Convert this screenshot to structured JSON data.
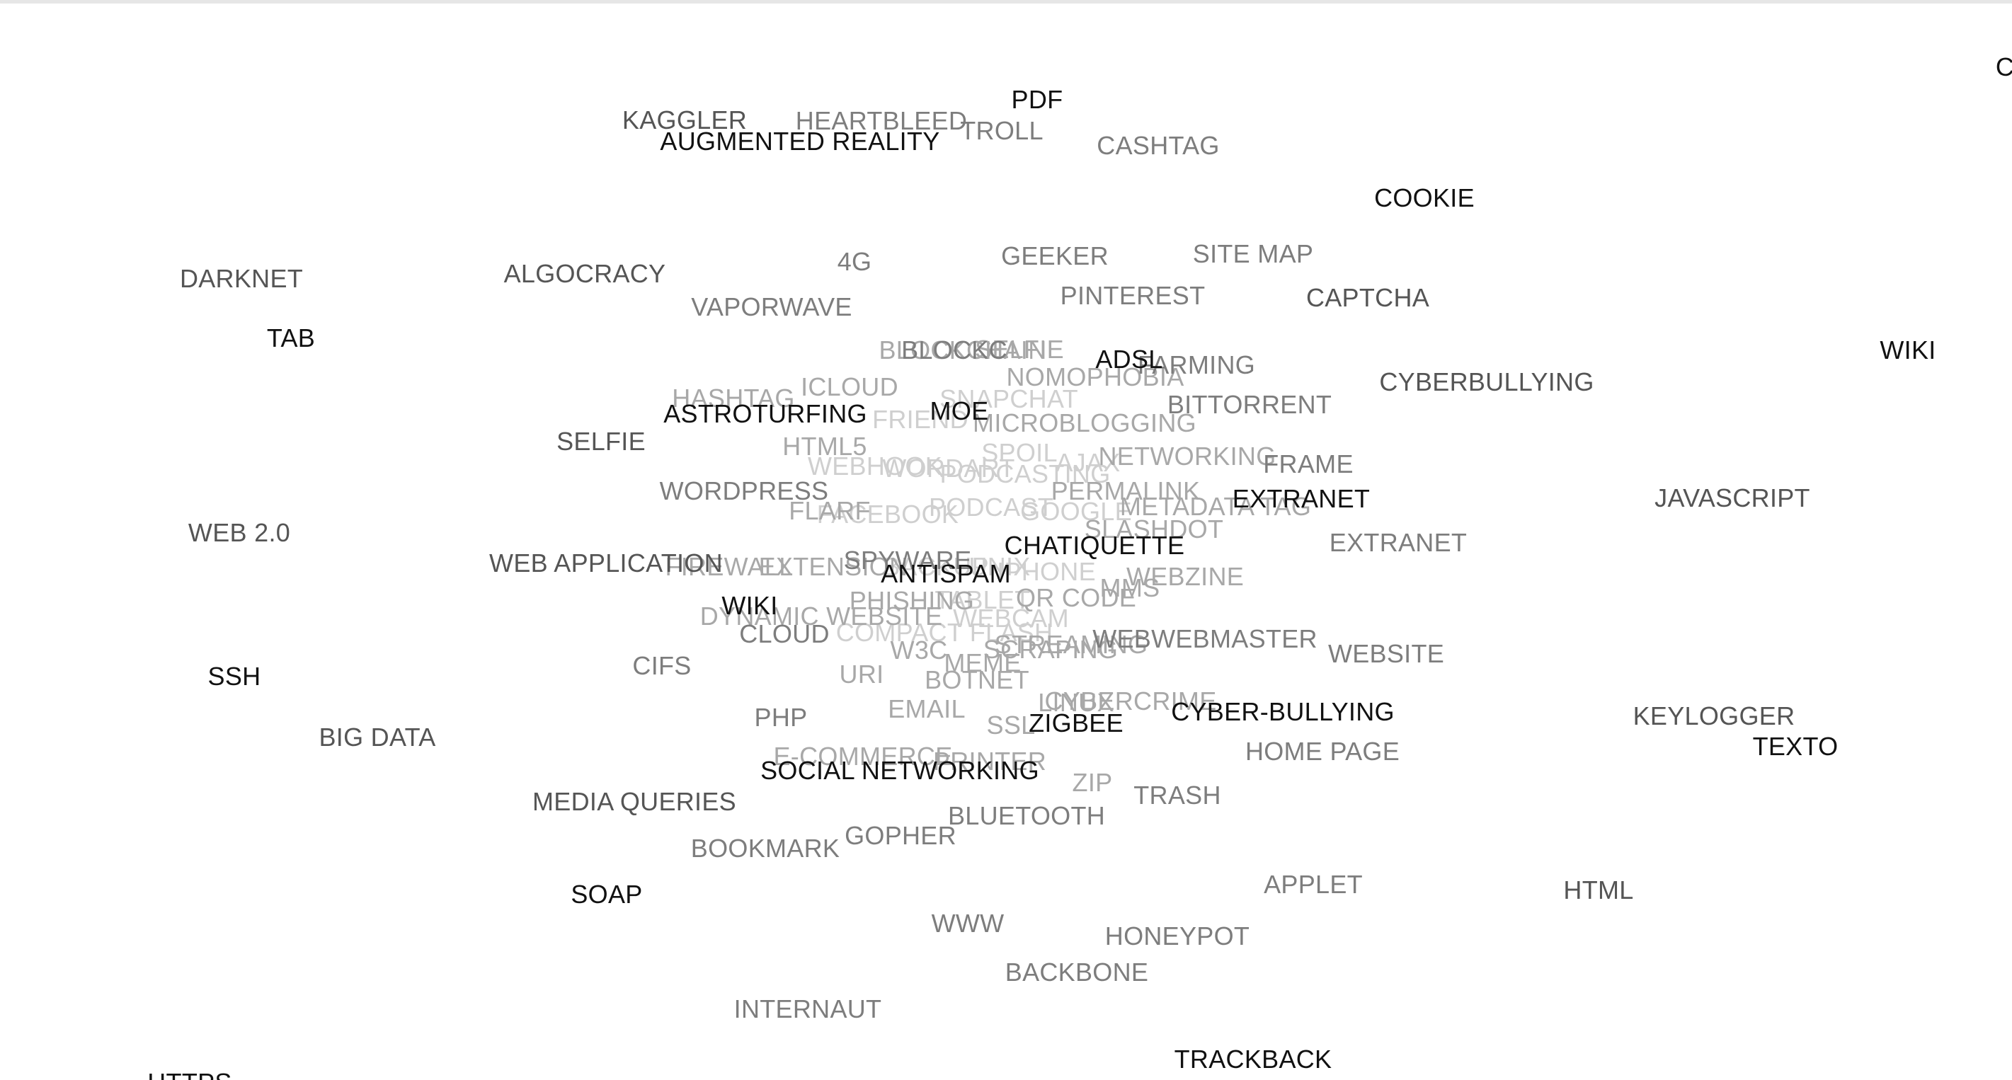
{
  "terms": [
    {
      "label": "C",
      "shade": 0
    },
    {
      "label": "PDF",
      "shade": 0
    },
    {
      "label": "KAGGLER",
      "shade": 1
    },
    {
      "label": "HEARTBLEED",
      "shade": 2
    },
    {
      "label": "TROLL",
      "shade": 2
    },
    {
      "label": "AUGMENTED REALITY",
      "shade": 0
    },
    {
      "label": "CASHTAG",
      "shade": 2
    },
    {
      "label": "COOKIE",
      "shade": 0
    },
    {
      "label": "DARKNET",
      "shade": 1
    },
    {
      "label": "ALGOCRACY",
      "shade": 1
    },
    {
      "label": "4G",
      "shade": 2
    },
    {
      "label": "GEEKER",
      "shade": 2
    },
    {
      "label": "SITE MAP",
      "shade": 2
    },
    {
      "label": "PINTEREST",
      "shade": 2
    },
    {
      "label": "CAPTCHA",
      "shade": 1
    },
    {
      "label": "VAPORWAVE",
      "shade": 2
    },
    {
      "label": "TAB",
      "shade": 0
    },
    {
      "label": "WIKI",
      "shade": 0
    },
    {
      "label": "SELFIE",
      "shade": 3
    },
    {
      "label": "BLOCKCHAIN",
      "shade": 3
    },
    {
      "label": "BLOCKC",
      "shade": 2
    },
    {
      "label": "ADSL",
      "shade": 0
    },
    {
      "label": "FARMING",
      "shade": 2
    },
    {
      "label": "NOMOPHOBIA",
      "shade": 3
    },
    {
      "label": "CYBERBULLYING",
      "shade": 1
    },
    {
      "label": "ICLOUD",
      "shade": 3
    },
    {
      "label": "HASHTAG",
      "shade": 3
    },
    {
      "label": "SNAPCHAT",
      "shade": 4
    },
    {
      "label": "BITTORRENT",
      "shade": 2
    },
    {
      "label": "ASTROTURFING",
      "shade": 0
    },
    {
      "label": "MOE",
      "shade": 0
    },
    {
      "label": "FRIEND",
      "shade": 4
    },
    {
      "label": "MICROBLOGGING",
      "shade": 3
    },
    {
      "label": "SELFIE",
      "shade": 1
    },
    {
      "label": "HTML5",
      "shade": 3
    },
    {
      "label": "SPOIL",
      "shade": 4
    },
    {
      "label": "NETWORKING",
      "shade": 3
    },
    {
      "label": "FRAME",
      "shade": 2
    },
    {
      "label": "WEBHOOK",
      "shade": 4
    },
    {
      "label": "WORDART",
      "shade": 4
    },
    {
      "label": "PODCASTING",
      "shade": 4
    },
    {
      "label": "AJAX",
      "shade": 4
    },
    {
      "label": "WORDPRESS",
      "shade": 2
    },
    {
      "label": "PERMALINK",
      "shade": 3
    },
    {
      "label": "JAVASCRIPT",
      "shade": 1
    },
    {
      "label": "EXTRANET",
      "shade": 0
    },
    {
      "label": "METADATA TAG",
      "shade": 3
    },
    {
      "label": "FLARF",
      "shade": 3
    },
    {
      "label": "FACEBOOK",
      "shade": 4
    },
    {
      "label": "GOOGLE",
      "shade": 4
    },
    {
      "label": "PODCAST",
      "shade": 4
    },
    {
      "label": "WEB 2.0",
      "shade": 1
    },
    {
      "label": "SLASHDOT",
      "shade": 3
    },
    {
      "label": "EXTRANET",
      "shade": 2
    },
    {
      "label": "CHATIQUETTE",
      "shade": 0
    },
    {
      "label": "WEB APPLICATION",
      "shade": 1
    },
    {
      "label": "FIREWALL",
      "shade": 3
    },
    {
      "label": "EXTENSION",
      "shade": 3
    },
    {
      "label": "SPYWARE",
      "shade": 2
    },
    {
      "label": "ANTISPAM",
      "shade": 0
    },
    {
      "label": "UNIX",
      "shade": 4
    },
    {
      "label": "BACKUP",
      "shade": 4
    },
    {
      "label": "WEBZINE",
      "shade": 3
    },
    {
      "label": "IPHONE",
      "shade": 4
    },
    {
      "label": "MMS",
      "shade": 3
    },
    {
      "label": "WIKI",
      "shade": 0
    },
    {
      "label": "PHISHING",
      "shade": 3
    },
    {
      "label": "TABLET",
      "shade": 4
    },
    {
      "label": "QR CODE",
      "shade": 3
    },
    {
      "label": "DYNAMIC WEBSITE",
      "shade": 3
    },
    {
      "label": "WEBCAM",
      "shade": 4
    },
    {
      "label": "CLOUD",
      "shade": 2
    },
    {
      "label": "COMPACT FLASH",
      "shade": 4
    },
    {
      "label": "STREAMING",
      "shade": 3
    },
    {
      "label": "WEBWEBMASTER",
      "shade": 2
    },
    {
      "label": "SSH",
      "shade": 0
    },
    {
      "label": "W3C",
      "shade": 3
    },
    {
      "label": "SCRAPING",
      "shade": 3
    },
    {
      "label": "WEBSITE",
      "shade": 2
    },
    {
      "label": "CIFS",
      "shade": 2
    },
    {
      "label": "MEME",
      "shade": 3
    },
    {
      "label": "URI",
      "shade": 3
    },
    {
      "label": "BOTNET",
      "shade": 3
    },
    {
      "label": "LINUX",
      "shade": 3
    },
    {
      "label": "CYBERCRIME",
      "shade": 3
    },
    {
      "label": "EMAIL",
      "shade": 3
    },
    {
      "label": "CYBER-BULLYING",
      "shade": 0
    },
    {
      "label": "PHP",
      "shade": 2
    },
    {
      "label": "KEYLOGGER",
      "shade": 1
    },
    {
      "label": "SSL",
      "shade": 3
    },
    {
      "label": "ZIGBEE",
      "shade": 0
    },
    {
      "label": "BIG DATA",
      "shade": 1
    },
    {
      "label": "TEXTO",
      "shade": 0
    },
    {
      "label": "HOME PAGE",
      "shade": 2
    },
    {
      "label": "E-COMMERCE",
      "shade": 3
    },
    {
      "label": "PRINTER",
      "shade": 3
    },
    {
      "label": "SOCIAL NETWORKING",
      "shade": 0
    },
    {
      "label": "ZIP",
      "shade": 3
    },
    {
      "label": "TRASH",
      "shade": 2
    },
    {
      "label": "MEDIA QUERIES",
      "shade": 1
    },
    {
      "label": "BLUETOOTH",
      "shade": 2
    },
    {
      "label": "GOPHER",
      "shade": 2
    },
    {
      "label": "BOOKMARK",
      "shade": 2
    },
    {
      "label": "APPLET",
      "shade": 2
    },
    {
      "label": "HTML",
      "shade": 1
    },
    {
      "label": "SOAP",
      "shade": 0
    },
    {
      "label": "WWW",
      "shade": 2
    },
    {
      "label": "HONEYPOT",
      "shade": 2
    },
    {
      "label": "BACKBONE",
      "shade": 2
    },
    {
      "label": "INTERNAUT",
      "shade": 2
    },
    {
      "label": "TRACKBACK",
      "shade": 0
    },
    {
      "label": "HTTPS",
      "shade": 0
    }
  ],
  "shades": [
    "#111111",
    "#555555",
    "#7d7d7d",
    "#a8a8a8",
    "#cfcfcf"
  ]
}
